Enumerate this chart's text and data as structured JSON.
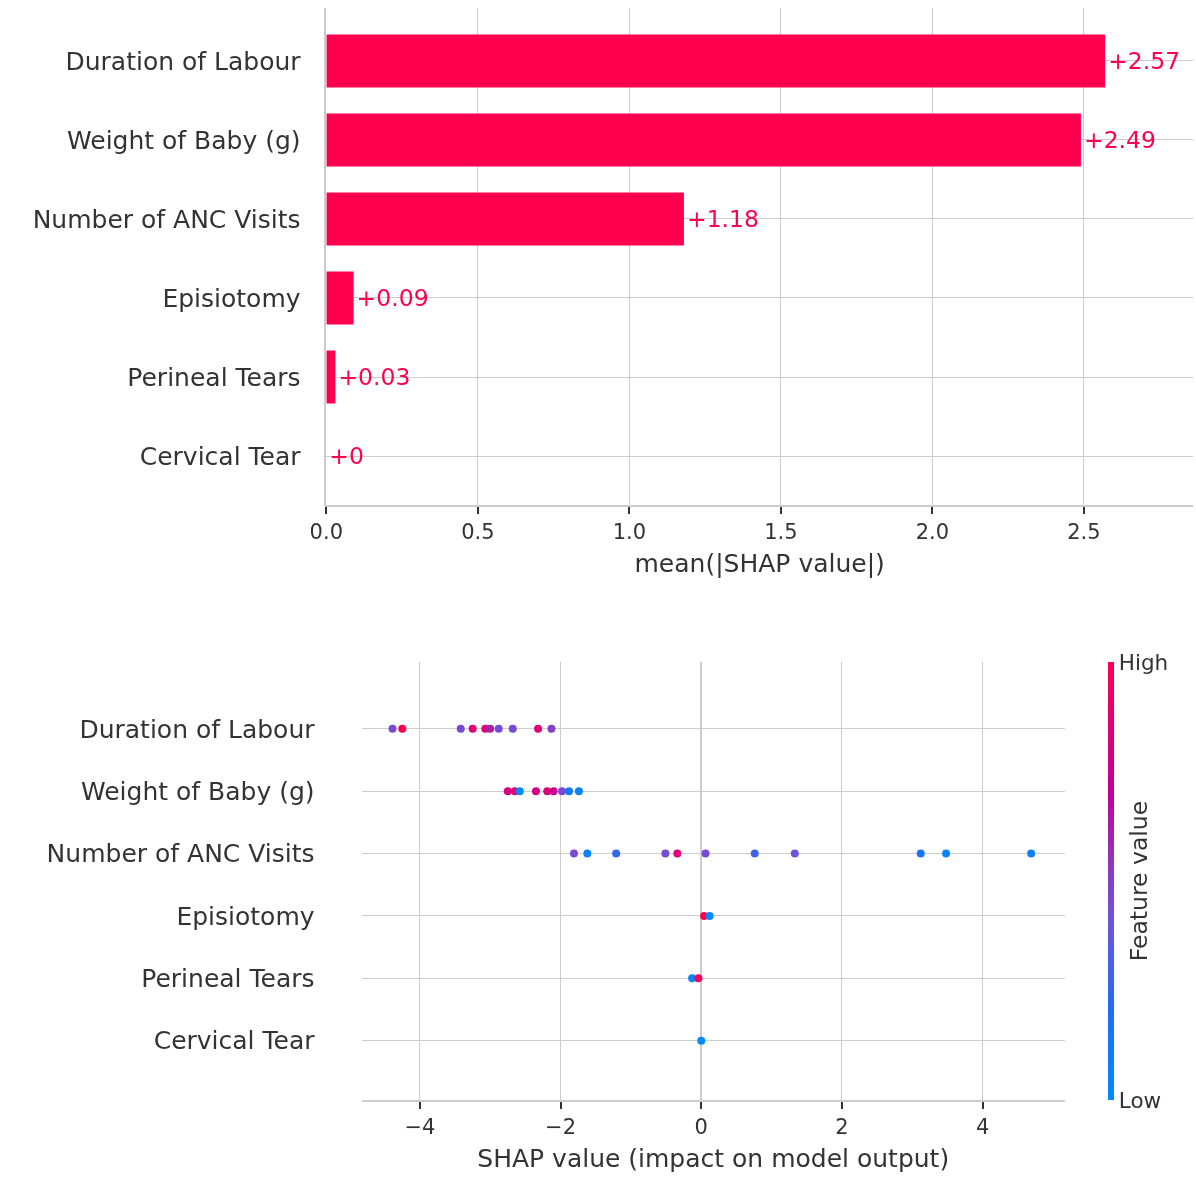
{
  "chart_data": [
    {
      "type": "bar",
      "orientation": "horizontal",
      "categories": [
        "Duration of Labour",
        "Weight of Baby (g)",
        "Number of ANC Visits",
        "Episiotomy",
        "Perineal Tears",
        "Cervical Tear"
      ],
      "values": [
        2.57,
        2.49,
        1.18,
        0.09,
        0.03,
        0
      ],
      "color": "#ff0051",
      "value_labels": [
        "+2.57",
        "+2.49",
        "+1.18",
        "+0.09",
        "+0.03",
        "+0"
      ],
      "xlim": [
        0,
        2.86
      ],
      "xticks": [
        {
          "value": 0,
          "label": "0.0"
        },
        0.5,
        {
          "value": 1,
          "label": "1.0"
        },
        1.5,
        {
          "value": 2,
          "label": "2.0"
        },
        2.5
      ],
      "xlabel": "mean(|SHAP value|)",
      "grid": true
    },
    {
      "type": "scatter",
      "orientation": "horizontal",
      "categories": [
        "Duration of Labour",
        "Weight of Baby (g)",
        "Number of ANC Visits",
        "Episiotomy",
        "Perineal Tears",
        "Cervical Tear"
      ],
      "series": [
        {
          "x": [
            "Duration of Labour",
            "Duration of Labour",
            "Duration of Labour",
            "Duration of Labour",
            "Duration of Labour",
            "Duration of Labour",
            "Duration of Labour",
            "Duration of Labour",
            "Duration of Labour",
            "Duration of Labour",
            "Weight of Baby (g)",
            "Weight of Baby (g)",
            "Weight of Baby (g)",
            "Weight of Baby (g)",
            "Weight of Baby (g)",
            "Weight of Baby (g)",
            "Weight of Baby (g)",
            "Weight of Baby (g)",
            "Weight of Baby (g)",
            "Number of ANC Visits",
            "Number of ANC Visits",
            "Number of ANC Visits",
            "Number of ANC Visits",
            "Number of ANC Visits",
            "Number of ANC Visits",
            "Number of ANC Visits",
            "Number of ANC Visits",
            "Number of ANC Visits",
            "Number of ANC Visits",
            "Number of ANC Visits",
            "Episiotomy",
            "Episiotomy",
            "Perineal Tears",
            "Perineal Tears",
            "Cervical Tear"
          ],
          "values": [
            -4.39,
            -4.25,
            -3.42,
            -3.25,
            -3.07,
            -3.0,
            -2.88,
            -2.68,
            -2.32,
            -2.13,
            -2.75,
            -2.65,
            -2.58,
            -2.35,
            -2.19,
            -2.1,
            -1.98,
            -1.88,
            -1.74,
            -1.81,
            -1.62,
            -1.21,
            -0.51,
            -0.34,
            0.06,
            0.76,
            1.33,
            3.12,
            3.48,
            4.69,
            0.04,
            0.12,
            -0.13,
            -0.04,
            0
          ],
          "cvalues": [
            0.45,
            1,
            0.45,
            0.85,
            0.85,
            0.6,
            0.45,
            0.45,
            0.85,
            0.5,
            0.8,
            0.85,
            0,
            0.8,
            0.85,
            0.75,
            0.45,
            0.1,
            0.05,
            0.45,
            0.05,
            0.25,
            0.45,
            0.85,
            0.45,
            0.3,
            0.4,
            0.15,
            0.05,
            0.08,
            1,
            0,
            0.05,
            0.95,
            0
          ]
        }
      ],
      "xlim": [
        -4.83,
        5.17
      ],
      "xticks": [
        -4,
        -2,
        0,
        2,
        4
      ],
      "xlabel": "SHAP value (impact on model output)",
      "clabel": "Feature value",
      "clim": [
        0,
        1
      ],
      "cticks": [
        {
          "value": 0,
          "label": "Low"
        },
        {
          "value": 1,
          "label": "High"
        }
      ],
      "ref_lines": [
        {
          "axis": "x",
          "value": 0,
          "color": "#999999"
        }
      ],
      "grid": true,
      "marker": "circle"
    }
  ]
}
